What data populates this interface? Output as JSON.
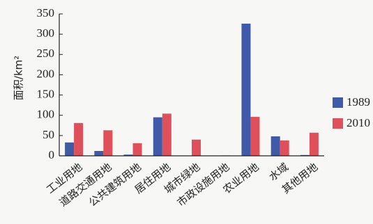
{
  "chart_data": {
    "type": "bar",
    "title": "",
    "xlabel": "",
    "ylabel": "面积/km²",
    "ylim": [
      0,
      350
    ],
    "yticks": [
      0,
      50,
      100,
      150,
      200,
      250,
      300,
      350
    ],
    "grid": false,
    "legend_position": "right",
    "categories": [
      "工业用地",
      "道路交通用地",
      "公共建筑用地",
      "居住用地",
      "城市绿地",
      "市政设施用地",
      "农业用地",
      "水域",
      "其他用地"
    ],
    "series": [
      {
        "name": "1989",
        "color": "#3e5aa8",
        "values": [
          33,
          12,
          3,
          95,
          0,
          0,
          326,
          48,
          2
        ]
      },
      {
        "name": "2010",
        "color": "#e0505a",
        "values": [
          81,
          63,
          31,
          104,
          40,
          1,
          96,
          38,
          57
        ]
      }
    ]
  }
}
